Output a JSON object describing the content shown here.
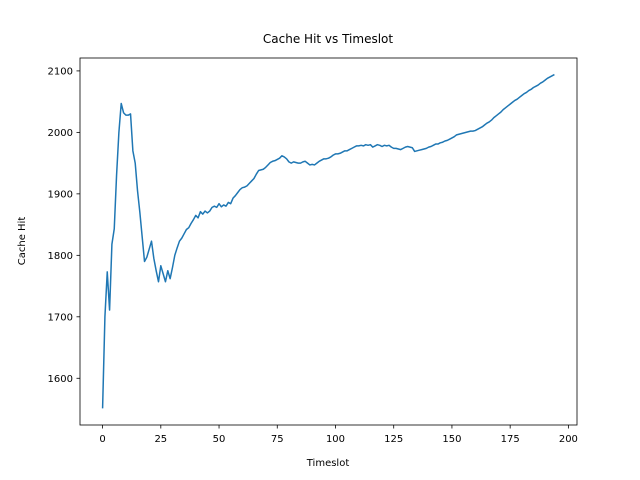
{
  "chart_data": {
    "type": "line",
    "title": "Cache Hit vs Timeslot",
    "x_label": "Timeslot",
    "y_label": "Cache Hit",
    "color": "#1f77b4",
    "x": [
      0,
      1,
      2,
      3,
      4,
      5,
      6,
      7,
      8,
      9,
      10,
      11,
      12,
      13,
      14,
      15,
      16,
      17,
      18,
      19,
      20,
      21,
      22,
      23,
      24,
      25,
      26,
      27,
      28,
      29,
      30,
      31,
      32,
      33,
      34,
      35,
      36,
      37,
      38,
      39,
      40,
      41,
      42,
      43,
      44,
      45,
      46,
      47,
      48,
      49,
      50,
      51,
      52,
      53,
      54,
      55,
      56,
      57,
      58,
      59,
      60,
      61,
      62,
      63,
      64,
      65,
      66,
      67,
      68,
      69,
      70,
      71,
      72,
      73,
      74,
      75,
      76,
      77,
      78,
      79,
      80,
      81,
      82,
      83,
      84,
      85,
      86,
      87,
      88,
      89,
      90,
      91,
      92,
      93,
      94,
      95,
      96,
      97,
      98,
      99,
      100,
      101,
      102,
      103,
      104,
      105,
      106,
      107,
      108,
      109,
      110,
      111,
      112,
      113,
      114,
      115,
      116,
      117,
      118,
      119,
      120,
      121,
      122,
      123,
      124,
      125,
      126,
      127,
      128,
      129,
      130,
      131,
      132,
      133,
      134,
      135,
      136,
      137,
      138,
      139,
      140,
      141,
      142,
      143,
      144,
      145,
      146,
      147,
      148,
      149,
      150,
      151,
      152,
      153,
      154,
      155,
      156,
      157,
      158,
      159,
      160,
      161,
      162,
      163,
      164,
      165,
      166,
      167,
      168,
      169,
      170,
      171,
      172,
      173,
      174,
      175,
      176,
      177,
      178,
      179,
      180,
      181,
      182,
      183,
      184,
      185,
      186,
      187,
      188,
      189,
      190,
      191,
      192,
      193,
      194
    ],
    "values": [
      1551,
      1700,
      1773,
      1711,
      1818,
      1843,
      1930,
      2000,
      2047,
      2032,
      2028,
      2028,
      2030,
      1970,
      1950,
      1905,
      1870,
      1830,
      1790,
      1797,
      1810,
      1823,
      1795,
      1775,
      1757,
      1783,
      1770,
      1757,
      1775,
      1762,
      1780,
      1800,
      1812,
      1823,
      1828,
      1835,
      1842,
      1845,
      1852,
      1858,
      1865,
      1861,
      1871,
      1867,
      1872,
      1869,
      1872,
      1878,
      1880,
      1878,
      1884,
      1879,
      1882,
      1880,
      1886,
      1884,
      1893,
      1897,
      1902,
      1907,
      1910,
      1911,
      1913,
      1917,
      1921,
      1925,
      1932,
      1938,
      1939,
      1940,
      1943,
      1947,
      1951,
      1953,
      1954,
      1956,
      1958,
      1962,
      1960,
      1957,
      1952,
      1950,
      1952,
      1951,
      1950,
      1950,
      1952,
      1953,
      1950,
      1947,
      1948,
      1947,
      1950,
      1953,
      1955,
      1957,
      1957,
      1958,
      1960,
      1963,
      1965,
      1965,
      1966,
      1968,
      1970,
      1970,
      1972,
      1974,
      1976,
      1978,
      1978,
      1979,
      1978,
      1980,
      1979,
      1980,
      1976,
      1978,
      1980,
      1979,
      1977,
      1979,
      1978,
      1979,
      1976,
      1974,
      1974,
      1973,
      1972,
      1974,
      1976,
      1977,
      1976,
      1975,
      1969,
      1970,
      1971,
      1972,
      1973,
      1974,
      1976,
      1977,
      1979,
      1981,
      1981,
      1983,
      1984,
      1986,
      1987,
      1989,
      1991,
      1993,
      1996,
      1997,
      1998,
      1999,
      2000,
      2001,
      2002,
      2002,
      2003,
      2005,
      2007,
      2009,
      2012,
      2015,
      2017,
      2020,
      2024,
      2027,
      2030,
      2033,
      2037,
      2040,
      2043,
      2046,
      2049,
      2052,
      2054,
      2057,
      2060,
      2063,
      2065,
      2068,
      2070,
      2073,
      2075,
      2077,
      2080,
      2082,
      2085,
      2088,
      2090,
      2092,
      2094
    ],
    "xlim": [
      -9.7,
      203.7
    ],
    "ylim": [
      1524,
      2121
    ],
    "xticks": [
      0,
      25,
      50,
      75,
      100,
      125,
      150,
      175,
      200
    ],
    "yticks": [
      1600,
      1700,
      1800,
      1900,
      2000,
      2100
    ]
  }
}
